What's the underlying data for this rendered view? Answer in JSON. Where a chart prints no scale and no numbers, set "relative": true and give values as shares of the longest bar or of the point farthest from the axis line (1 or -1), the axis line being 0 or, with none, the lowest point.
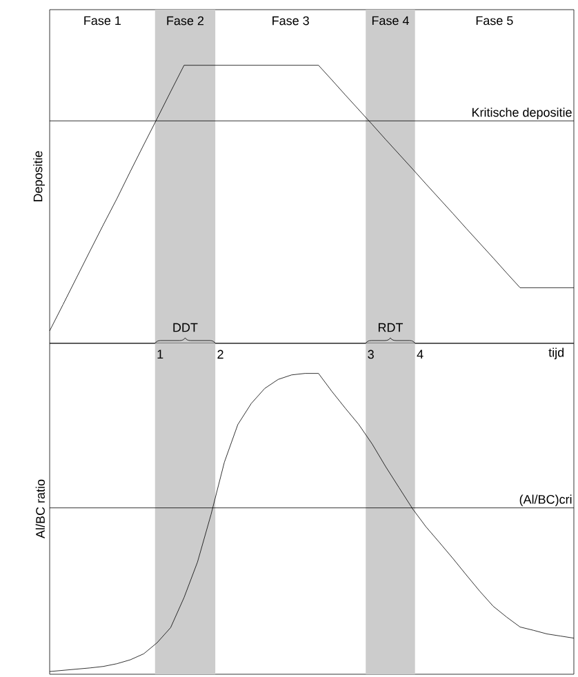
{
  "chart_data": [
    {
      "type": "line",
      "relative": true,
      "ylabel": "Depositie",
      "xlabel": "tijd",
      "tick_labels": false,
      "categories": [
        null,
        null,
        null,
        null,
        null,
        null,
        null,
        null,
        null,
        null,
        null,
        null,
        null,
        null,
        null,
        null,
        null,
        null,
        null,
        null,
        null,
        null,
        null,
        null,
        null,
        null,
        null,
        null,
        null,
        null,
        null,
        null,
        null,
        null,
        null,
        null,
        null,
        null,
        null,
        null
      ],
      "series": [
        {
          "color": "#000000",
          "values": [
            0.045,
            0.14,
            0.236,
            0.332,
            0.427,
            0.52,
            0.618,
            0.714,
            0.809,
            0.905,
            1,
            1,
            1,
            1,
            1,
            1,
            1,
            1,
            1,
            1,
            1,
            0.947,
            0.893,
            0.84,
            0.787,
            0.733,
            0.68,
            0.627,
            0.573,
            0.52,
            0.467,
            0.413,
            0.36,
            0.307,
            0.253,
            0.2,
            0.2,
            0.2,
            0.2,
            0.2
          ]
        }
      ],
      "ref_lines": [
        {
          "axis": "y",
          "value": 0.8,
          "label": "Kritische depositie",
          "color": "#000000"
        }
      ],
      "annotations": [
        "Fase 1",
        "Fase 2",
        "Fase 3",
        "Fase 4",
        "Fase 5",
        "DDT",
        "RDT"
      ]
    },
    {
      "type": "line",
      "relative": true,
      "ylabel": "Al/BC ratio",
      "tick_labels": false,
      "categories": [
        null,
        null,
        null,
        null,
        null,
        null,
        null,
        null,
        null,
        null,
        null,
        null,
        null,
        null,
        null,
        null,
        null,
        null,
        null,
        null,
        null,
        null,
        null,
        null,
        null,
        null,
        null,
        null,
        null,
        null,
        null,
        null,
        null,
        null,
        null,
        null,
        null,
        null,
        null,
        null
      ],
      "series": [
        {
          "color": "#000000",
          "values": [
            0.009,
            0.013,
            0.017,
            0.021,
            0.026,
            0.035,
            0.048,
            0.068,
            0.105,
            0.155,
            0.255,
            0.373,
            0.53,
            0.705,
            0.83,
            0.9,
            0.95,
            0.98,
            0.995,
            1,
            1,
            0.94,
            0.884,
            0.83,
            0.765,
            0.69,
            0.62,
            0.55,
            0.49,
            0.438,
            0.385,
            0.33,
            0.276,
            0.226,
            0.19,
            0.157,
            0.146,
            0.134,
            0.127,
            0.12
          ]
        }
      ],
      "ref_lines": [
        {
          "axis": "y",
          "value": 0.553,
          "label": "(Al/BC)cri",
          "color": "#000000"
        }
      ],
      "annotations": [
        "1",
        "2",
        "3",
        "4"
      ]
    }
  ]
}
